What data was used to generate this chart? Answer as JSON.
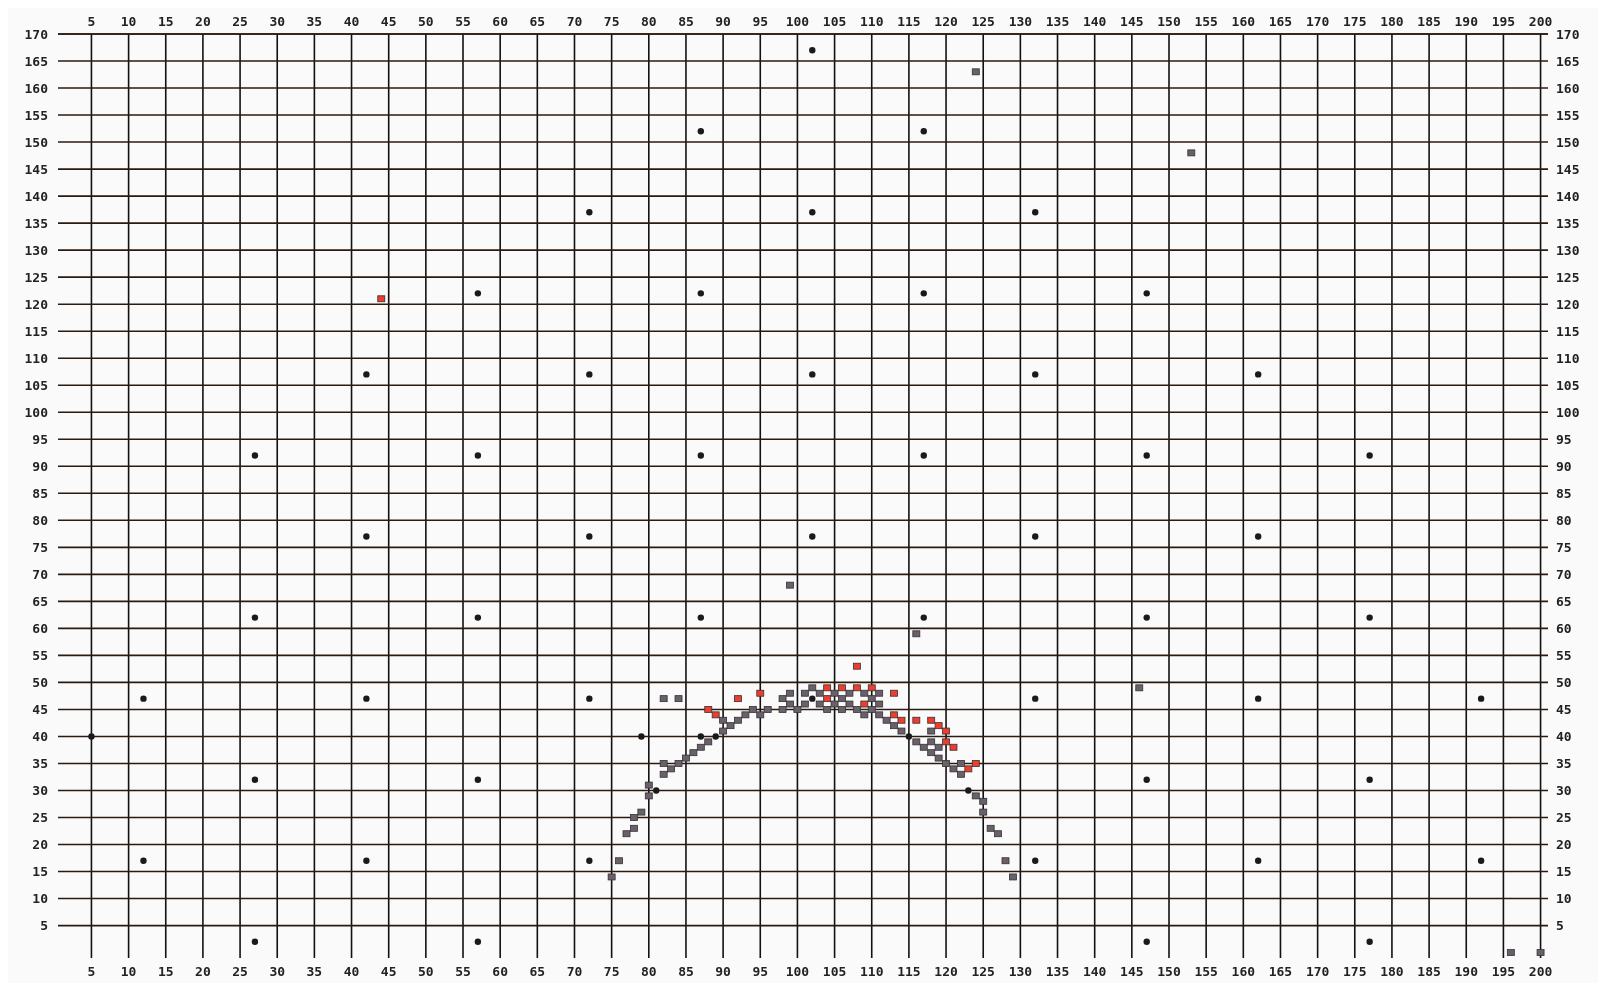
{
  "chart_data": {
    "type": "scatter",
    "xlim": [
      0.5,
      201
    ],
    "ylim": [
      -1,
      170
    ],
    "xticks": [
      5,
      10,
      15,
      20,
      25,
      30,
      35,
      40,
      45,
      50,
      55,
      60,
      65,
      70,
      75,
      80,
      85,
      90,
      95,
      100,
      105,
      110,
      115,
      120,
      125,
      130,
      135,
      140,
      145,
      150,
      155,
      160,
      165,
      170,
      175,
      180,
      185,
      190,
      195,
      200
    ],
    "x2lim": [
      0.5,
      201
    ],
    "x2ticks": [
      5,
      10,
      15,
      20,
      25,
      30,
      35,
      40,
      45,
      50,
      55,
      60,
      65,
      70,
      75,
      80,
      85,
      90,
      95,
      100,
      105,
      110,
      115,
      120,
      125,
      130,
      135,
      140,
      145,
      150,
      155,
      160,
      165,
      170,
      175,
      180,
      185,
      190,
      195,
      200
    ],
    "yticks": [
      5,
      10,
      15,
      20,
      25,
      30,
      35,
      40,
      45,
      50,
      55,
      60,
      65,
      70,
      75,
      80,
      85,
      90,
      95,
      100,
      105,
      110,
      115,
      120,
      125,
      130,
      135,
      140,
      145,
      150,
      155,
      160,
      165,
      170
    ],
    "y2lim": [
      -1,
      170
    ],
    "y2ticks": [
      5,
      10,
      15,
      20,
      25,
      30,
      35,
      40,
      45,
      50,
      55,
      60,
      65,
      70,
      75,
      80,
      85,
      90,
      95,
      100,
      105,
      110,
      115,
      120,
      125,
      130,
      135,
      140,
      145,
      150,
      155,
      160,
      165,
      170
    ],
    "grid": true,
    "series": [
      {
        "color": "#1a1a1a",
        "marker": "circle",
        "x": [
          102,
          87,
          117,
          72,
          102,
          132,
          57,
          87,
          117,
          147,
          42,
          72,
          102,
          132,
          162,
          27,
          57,
          87,
          117,
          147,
          177,
          42,
          72,
          102,
          132,
          162,
          27,
          57,
          87,
          117,
          147,
          177,
          12,
          42,
          72,
          132,
          162,
          192,
          27,
          57,
          147,
          177,
          12,
          42,
          72,
          132,
          162,
          192,
          27,
          57,
          147,
          177,
          5,
          79,
          87,
          89,
          81,
          102,
          115,
          123
        ],
        "values": [
          167,
          152,
          152,
          137,
          137,
          137,
          122,
          122,
          122,
          122,
          107,
          107,
          107,
          107,
          107,
          92,
          92,
          92,
          92,
          92,
          92,
          77,
          77,
          77,
          77,
          77,
          62,
          62,
          62,
          62,
          62,
          62,
          47,
          47,
          47,
          47,
          47,
          47,
          32,
          32,
          32,
          32,
          17,
          17,
          17,
          17,
          17,
          17,
          2,
          2,
          2,
          2,
          40,
          40,
          40,
          40,
          30,
          47,
          40,
          30
        ]
      },
      {
        "color": "#6b5f6b",
        "marker": "square",
        "x": [
          124,
          153,
          99,
          116,
          146,
          196,
          200,
          82,
          84,
          99,
          98,
          99,
          94,
          96,
          98,
          100,
          95,
          93,
          92,
          90,
          91,
          90,
          88,
          87,
          86,
          85,
          84,
          82,
          83,
          82,
          80,
          80,
          79,
          78,
          78,
          77,
          76,
          75,
          102,
          101,
          103,
          101,
          103,
          104,
          105,
          105,
          106,
          106,
          107,
          107,
          108,
          109,
          109,
          110,
          111,
          111,
          110,
          111,
          112,
          113,
          114,
          118,
          116,
          118,
          117,
          119,
          118,
          119,
          120,
          122,
          121,
          122,
          124,
          125,
          125,
          126,
          127,
          128,
          129
        ],
        "values": [
          163,
          148,
          68,
          59,
          49,
          0,
          0,
          47,
          47,
          48,
          47,
          46,
          45,
          45,
          45,
          45,
          44,
          44,
          43,
          43,
          42,
          41,
          39,
          38,
          37,
          36,
          35,
          35,
          34,
          33,
          31,
          29,
          26,
          25,
          23,
          22,
          17,
          14,
          49,
          48,
          48,
          46,
          46,
          45,
          48,
          46,
          47,
          45,
          48,
          46,
          45,
          48,
          44,
          47,
          48,
          46,
          45,
          44,
          43,
          42,
          41,
          41,
          39,
          39,
          38,
          38,
          37,
          36,
          35,
          35,
          34,
          33,
          29,
          28,
          26,
          23,
          22,
          17,
          14
        ]
      },
      {
        "color": "#f03c2c",
        "marker": "square",
        "x": [
          44,
          92,
          95,
          88,
          89,
          108,
          104,
          104,
          106,
          108,
          109,
          110,
          113,
          113,
          114,
          116,
          118,
          119,
          120,
          120,
          121,
          124,
          123
        ],
        "values": [
          121,
          47,
          48,
          45,
          44,
          53,
          49,
          47,
          49,
          49,
          46,
          49,
          48,
          44,
          43,
          43,
          43,
          42,
          41,
          39,
          38,
          35,
          34
        ]
      }
    ]
  }
}
